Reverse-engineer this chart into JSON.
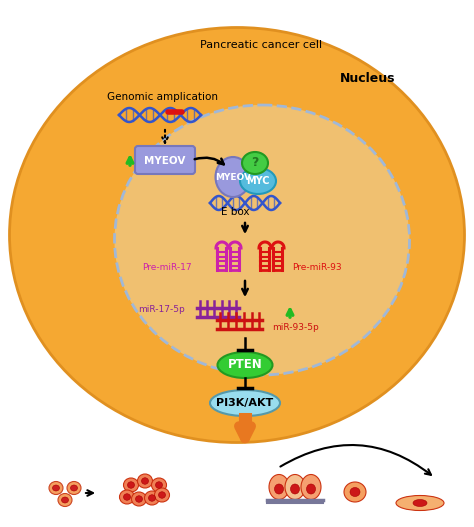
{
  "bg_color": "#FFFFFF",
  "cell_color": "#F5A832",
  "cell_edge_color": "#E09020",
  "nucleus_fill": "#F0C070",
  "nucleus_dash_color": "#A0B8D8",
  "myeov_box_color": "#9999DD",
  "myc_color": "#55BBDD",
  "question_color": "#44CC44",
  "pre_mir17_color": "#CC22AA",
  "pre_mir93_color": "#DD1111",
  "mir17_color": "#882299",
  "mir93_color": "#CC1111",
  "pten_color": "#33CC33",
  "pi3k_color": "#99DDEE",
  "arrow_orange": "#E87820",
  "green_arrow": "#22BB22",
  "dna_color": "#3355CC",
  "title_cell": "Pancreatic cancer cell",
  "title_nucleus": "Nucleus",
  "label_genomic": "Genomic amplication",
  "label_myeov": "MYEOV",
  "label_myeov2": "MYEOV",
  "label_myc": "MYC",
  "label_q": "?",
  "label_ebox": "E box",
  "label_premir17": "Pre-miR-17",
  "label_premir93": "Pre-miR-93",
  "label_mir17": "miR-17-5p",
  "label_mir93": "miR-93-5p",
  "label_pten": "PTEN",
  "label_pi3k": "PI3K/AKT"
}
